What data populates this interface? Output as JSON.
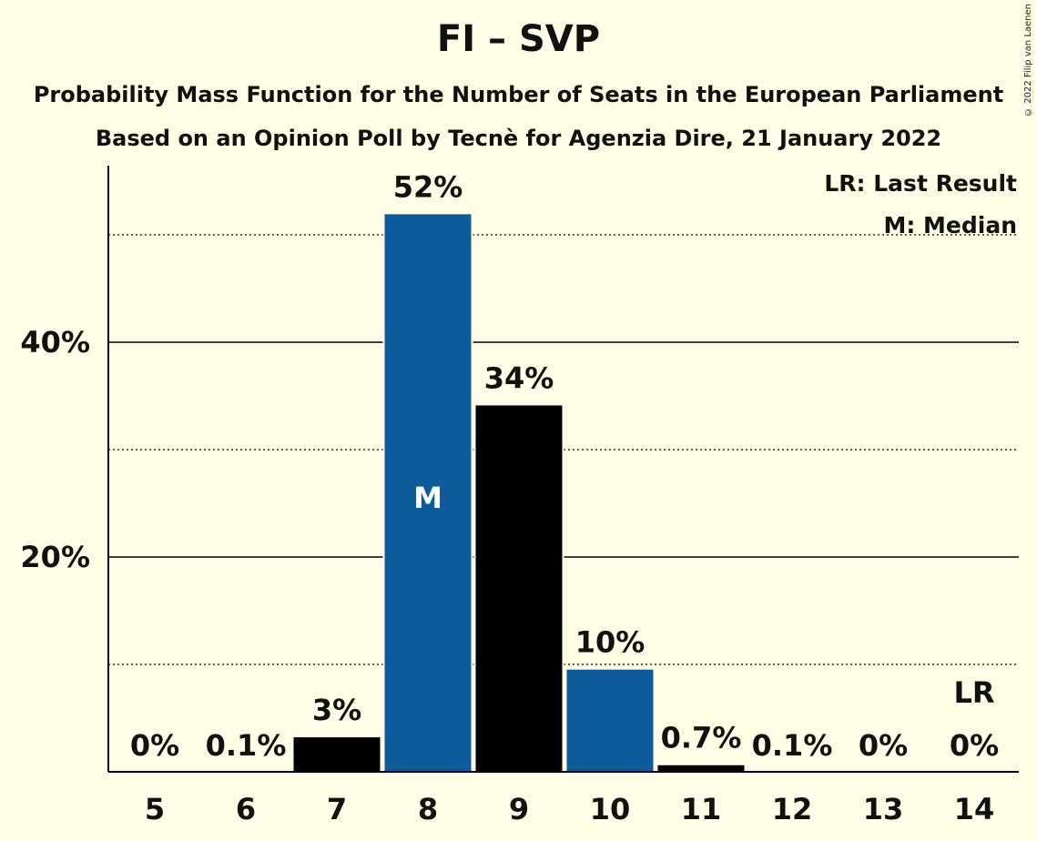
{
  "chart_data": {
    "type": "bar",
    "title": "FI – SVP",
    "subtitle": "Probability Mass Function for the Number of Seats in the European Parliament",
    "subtitle2": "Based on an Opinion Poll by Tecnè for Agenzia Dire, 21 January 2022",
    "copyright": "© 2022 Filip van Laenen",
    "categories": [
      "5",
      "6",
      "7",
      "8",
      "9",
      "10",
      "11",
      "12",
      "13",
      "14"
    ],
    "values": [
      0,
      0.1,
      3.3,
      52,
      34.2,
      9.6,
      0.7,
      0.1,
      0,
      0
    ],
    "data_labels": [
      "0%",
      "0.1%",
      "3%",
      "52%",
      "34%",
      "10%",
      "0.7%",
      "0.1%",
      "0%",
      "0%"
    ],
    "bar_colors": [
      "#000000",
      "#000000",
      "#000000",
      "#0D5B9B",
      "#000000",
      "#0D5B9B",
      "#000000",
      "#000000",
      "#000000",
      "#000000"
    ],
    "ylim": [
      0,
      56
    ],
    "yticks": [
      20,
      40
    ],
    "ytick_labels": [
      "20%",
      "40%"
    ],
    "minor_gridlines": [
      10,
      30,
      50
    ],
    "median_index": 3,
    "median_marker": "M",
    "last_result_index": 9,
    "last_result_marker": "LR",
    "legend": {
      "position": "top-right",
      "lr": "LR: Last Result",
      "m": "M: Median"
    },
    "colors": {
      "background": "#FFFDE5",
      "blue": "#0D5B9B",
      "black": "#000000"
    }
  }
}
